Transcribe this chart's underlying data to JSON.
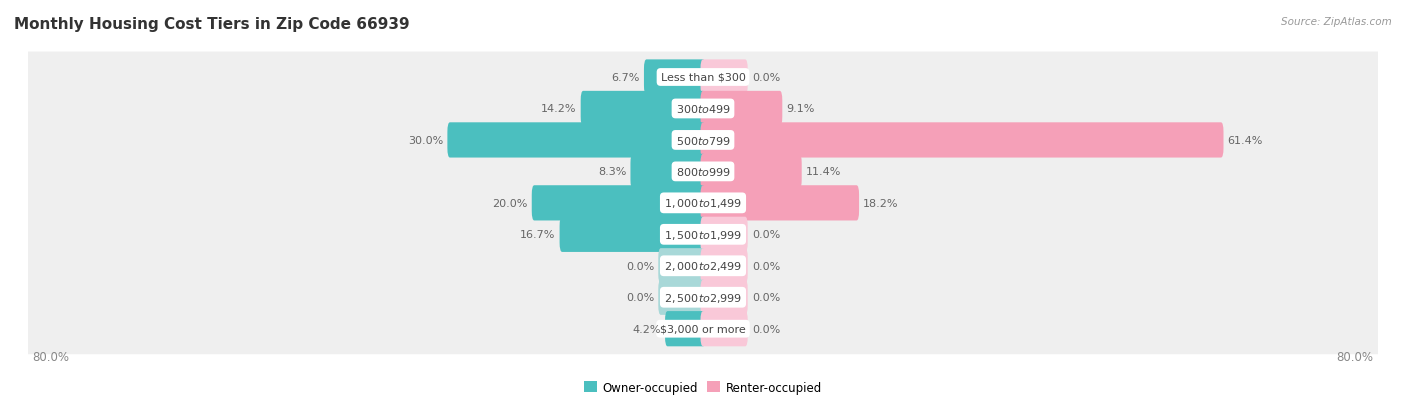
{
  "title": "Monthly Housing Cost Tiers in Zip Code 66939",
  "source": "Source: ZipAtlas.com",
  "categories": [
    "Less than $300",
    "$300 to $499",
    "$500 to $799",
    "$800 to $999",
    "$1,000 to $1,499",
    "$1,500 to $1,999",
    "$2,000 to $2,499",
    "$2,500 to $2,999",
    "$3,000 or more"
  ],
  "owner_values": [
    6.7,
    14.2,
    30.0,
    8.3,
    20.0,
    16.7,
    0.0,
    0.0,
    4.2
  ],
  "renter_values": [
    0.0,
    9.1,
    61.4,
    11.4,
    18.2,
    0.0,
    0.0,
    0.0,
    0.0
  ],
  "owner_color": "#4BBFBF",
  "renter_color": "#F5A0B8",
  "owner_color_faded": "#A8D8D8",
  "renter_color_faded": "#F9C8D8",
  "row_bg_color": "#EFEFEF",
  "max_val": 80.0,
  "stub_val": 5.0,
  "legend_owner": "Owner-occupied",
  "legend_renter": "Renter-occupied",
  "title_fontsize": 11,
  "source_fontsize": 7.5,
  "value_fontsize": 8,
  "category_fontsize": 8,
  "legend_fontsize": 8.5,
  "axis_label_fontsize": 8.5
}
